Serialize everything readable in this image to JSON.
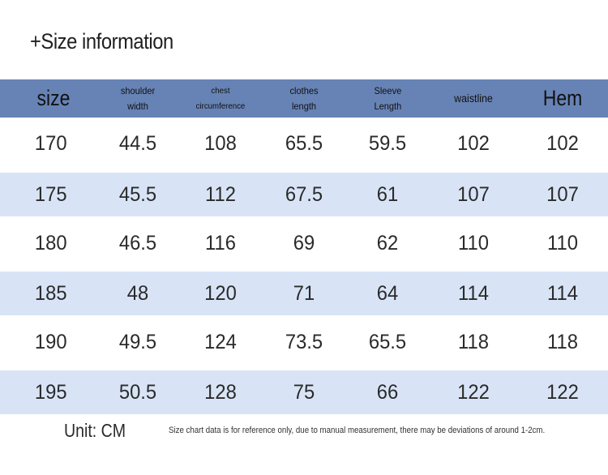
{
  "title": "+Size information",
  "headers": {
    "size": "size",
    "shoulder_l1": "shoulder",
    "shoulder_l2": "width",
    "chest_l1": "chest",
    "chest_l2": "circumference",
    "clothes_l1": "clothes",
    "clothes_l2": "length",
    "sleeve_l1": "Sleeve",
    "sleeve_l2": "Length",
    "waistline": "waistline",
    "hem": "Hem"
  },
  "rows": [
    [
      "170",
      "44.5",
      "108",
      "65.5",
      "59.5",
      "102",
      "102"
    ],
    [
      "175",
      "45.5",
      "112",
      "67.5",
      "61",
      "107",
      "107"
    ],
    [
      "180",
      "46.5",
      "116",
      "69",
      "62",
      "110",
      "110"
    ],
    [
      "185",
      "48",
      "120",
      "71",
      "64",
      "114",
      "114"
    ],
    [
      "190",
      "49.5",
      "124",
      "73.5",
      "65.5",
      "118",
      "118"
    ],
    [
      "195",
      "50.5",
      "128",
      "75",
      "66",
      "122",
      "122"
    ]
  ],
  "footer": {
    "unit": "Unit: CM",
    "note": "Size chart data is for reference only, due to manual measurement, there may be deviations of around 1-2cm."
  },
  "colors": {
    "header_bg": "#6783b5",
    "alt_row_bg": "#d8e4f6"
  }
}
